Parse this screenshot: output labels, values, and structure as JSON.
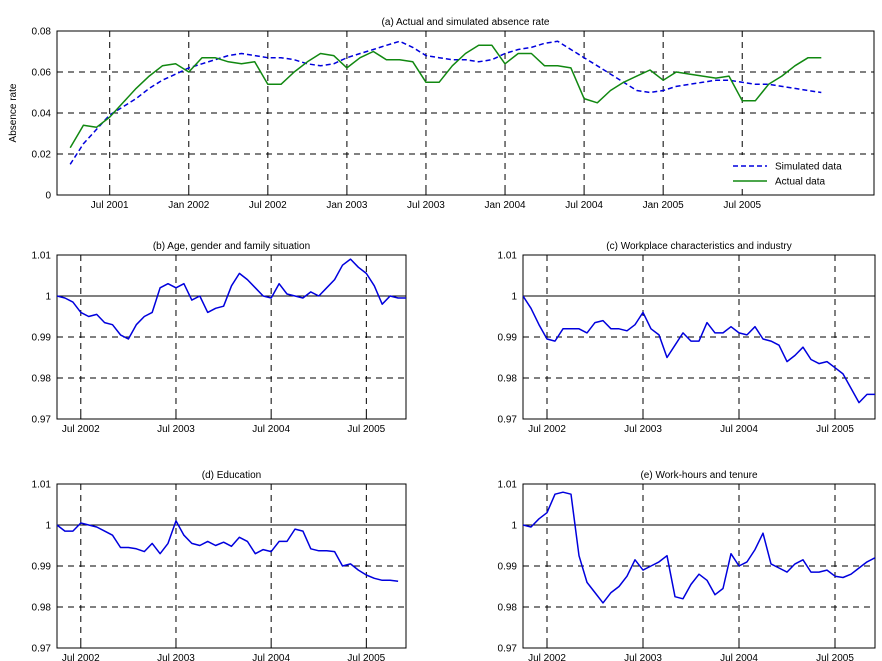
{
  "chart_data": [
    {
      "type": "line",
      "title": "(a) Actual and simulated absence rate",
      "xlabel": "",
      "ylabel": "Absence rate",
      "xlim": [
        "2001-03",
        "2006-05"
      ],
      "ylim": [
        0,
        0.08
      ],
      "yticks": [
        0,
        0.02,
        0.04,
        0.06,
        0.08
      ],
      "ytick_labels": [
        "0",
        "0.02",
        "0.04",
        "0.06",
        "0.08"
      ],
      "xticks": [
        "2001-07",
        "2002-01",
        "2002-07",
        "2003-01",
        "2003-07",
        "2004-01",
        "2004-07",
        "2005-01",
        "2005-07"
      ],
      "xtick_labels": [
        "Jul 2001",
        "Jan 2002",
        "Jul 2002",
        "Jan 2003",
        "Jul 2003",
        "Jan 2004",
        "Jul 2004",
        "Jan 2005",
        "Jul 2005"
      ],
      "grid": true,
      "legend": "bottom-right",
      "series": [
        {
          "name": "Simulated data",
          "color": "#0000dd",
          "style": "dashed",
          "x": [
            "2001-04",
            "2001-05",
            "2001-06",
            "2001-07",
            "2001-08",
            "2001-09",
            "2001-10",
            "2001-11",
            "2001-12",
            "2002-01",
            "2002-02",
            "2002-03",
            "2002-04",
            "2002-05",
            "2002-06",
            "2002-07",
            "2002-08",
            "2002-09",
            "2002-10",
            "2002-11",
            "2002-12",
            "2003-01",
            "2003-02",
            "2003-03",
            "2003-04",
            "2003-05",
            "2003-06",
            "2003-07",
            "2003-08",
            "2003-09",
            "2003-10",
            "2003-11",
            "2003-12",
            "2004-01",
            "2004-02",
            "2004-03",
            "2004-04",
            "2004-05",
            "2004-06",
            "2004-07",
            "2004-08",
            "2004-09",
            "2004-10",
            "2004-11",
            "2004-12",
            "2005-01",
            "2005-02",
            "2005-03",
            "2005-04",
            "2005-05",
            "2005-06",
            "2005-07",
            "2005-08",
            "2005-09",
            "2005-10",
            "2005-11",
            "2005-12",
            "2006-01"
          ],
          "values": [
            0.015,
            0.025,
            0.032,
            0.039,
            0.043,
            0.047,
            0.052,
            0.056,
            0.059,
            0.062,
            0.064,
            0.066,
            0.068,
            0.069,
            0.068,
            0.067,
            0.067,
            0.066,
            0.064,
            0.063,
            0.064,
            0.067,
            0.069,
            0.071,
            0.073,
            0.075,
            0.072,
            0.068,
            0.067,
            0.066,
            0.066,
            0.065,
            0.066,
            0.069,
            0.071,
            0.072,
            0.074,
            0.075,
            0.071,
            0.067,
            0.063,
            0.059,
            0.055,
            0.051,
            0.05,
            0.051,
            0.053,
            0.054,
            0.055,
            0.056,
            0.056,
            0.055,
            0.054,
            0.054,
            0.053,
            0.052,
            0.051,
            0.05
          ]
        },
        {
          "name": "Actual data",
          "color": "#118811",
          "style": "solid",
          "x": [
            "2001-04",
            "2001-05",
            "2001-06",
            "2001-07",
            "2001-08",
            "2001-09",
            "2001-10",
            "2001-11",
            "2001-12",
            "2002-01",
            "2002-02",
            "2002-03",
            "2002-04",
            "2002-05",
            "2002-06",
            "2002-07",
            "2002-08",
            "2002-09",
            "2002-10",
            "2002-11",
            "2002-12",
            "2003-01",
            "2003-02",
            "2003-03",
            "2003-04",
            "2003-05",
            "2003-06",
            "2003-07",
            "2003-08",
            "2003-09",
            "2003-10",
            "2003-11",
            "2003-12",
            "2004-01",
            "2004-02",
            "2004-03",
            "2004-04",
            "2004-05",
            "2004-06",
            "2004-07",
            "2004-08",
            "2004-09",
            "2004-10",
            "2004-11",
            "2004-12",
            "2005-01",
            "2005-02",
            "2005-03",
            "2005-04",
            "2005-05",
            "2005-06",
            "2005-07",
            "2005-08",
            "2005-09",
            "2005-10",
            "2005-11",
            "2005-12",
            "2006-01"
          ],
          "values": [
            0.023,
            0.034,
            0.033,
            0.038,
            0.045,
            0.052,
            0.058,
            0.063,
            0.064,
            0.06,
            0.067,
            0.067,
            0.065,
            0.064,
            0.065,
            0.054,
            0.054,
            0.06,
            0.065,
            0.069,
            0.068,
            0.062,
            0.067,
            0.07,
            0.066,
            0.066,
            0.065,
            0.055,
            0.055,
            0.063,
            0.069,
            0.073,
            0.073,
            0.064,
            0.069,
            0.069,
            0.063,
            0.063,
            0.062,
            0.047,
            0.045,
            0.051,
            0.055,
            0.058,
            0.061,
            0.056,
            0.06,
            0.059,
            0.058,
            0.057,
            0.058,
            0.046,
            0.046,
            0.054,
            0.058,
            0.063,
            0.067,
            0.067
          ]
        }
      ]
    },
    {
      "type": "line",
      "title": "(b) Age, gender and family situation",
      "xlabel": "",
      "ylabel": "",
      "xlim": [
        "2002-04",
        "2005-12"
      ],
      "ylim": [
        0.97,
        1.01
      ],
      "yticks": [
        0.97,
        0.98,
        0.99,
        1.0,
        1.01
      ],
      "ytick_labels": [
        "0.97",
        "0.98",
        "0.99",
        "1",
        "1.01"
      ],
      "xticks": [
        "2002-07",
        "2003-07",
        "2004-07",
        "2005-07"
      ],
      "xtick_labels": [
        "Jul 2002",
        "Jul 2003",
        "Jul 2004",
        "Jul 2005"
      ],
      "grid": true,
      "reference_line": 1.0,
      "series": [
        {
          "color": "#0000dd",
          "style": "solid",
          "x": [
            "2002-04",
            "2002-05",
            "2002-06",
            "2002-07",
            "2002-08",
            "2002-09",
            "2002-10",
            "2002-11",
            "2002-12",
            "2003-01",
            "2003-02",
            "2003-03",
            "2003-04",
            "2003-05",
            "2003-06",
            "2003-07",
            "2003-08",
            "2003-09",
            "2003-10",
            "2003-11",
            "2003-12",
            "2004-01",
            "2004-02",
            "2004-03",
            "2004-04",
            "2004-05",
            "2004-06",
            "2004-07",
            "2004-08",
            "2004-09",
            "2004-10",
            "2004-11",
            "2004-12",
            "2005-01",
            "2005-02",
            "2005-03",
            "2005-04",
            "2005-05",
            "2005-06",
            "2005-07",
            "2005-08",
            "2005-09",
            "2005-10",
            "2005-11",
            "2005-12"
          ],
          "values": [
            1.0,
            0.9995,
            0.9985,
            0.996,
            0.995,
            0.9955,
            0.9935,
            0.993,
            0.9905,
            0.9895,
            0.993,
            0.995,
            0.996,
            1.002,
            1.003,
            1.002,
            1.003,
            0.999,
            1.0,
            0.996,
            0.997,
            0.9975,
            1.0025,
            1.0055,
            1.004,
            1.002,
            1.0,
            0.9995,
            1.003,
            1.0005,
            1.0,
            0.9995,
            1.001,
            1.0,
            1.002,
            1.004,
            1.0075,
            1.009,
            1.007,
            1.0055,
            1.0025,
            0.998,
            1.0,
            0.9995,
            0.9995
          ]
        }
      ]
    },
    {
      "type": "line",
      "title": "(c) Workplace characteristics and industry",
      "xlabel": "",
      "ylabel": "",
      "xlim": [
        "2002-04",
        "2005-12"
      ],
      "ylim": [
        0.97,
        1.01
      ],
      "yticks": [
        0.97,
        0.98,
        0.99,
        1.0,
        1.01
      ],
      "ytick_labels": [
        "0.97",
        "0.98",
        "0.99",
        "1",
        "1.01"
      ],
      "xticks": [
        "2002-07",
        "2003-07",
        "2004-07",
        "2005-07"
      ],
      "xtick_labels": [
        "Jul 2002",
        "Jul 2003",
        "Jul 2004",
        "Jul 2005"
      ],
      "grid": true,
      "reference_line": 1.0,
      "series": [
        {
          "color": "#0000dd",
          "style": "solid",
          "x": [
            "2002-04",
            "2002-05",
            "2002-06",
            "2002-07",
            "2002-08",
            "2002-09",
            "2002-10",
            "2002-11",
            "2002-12",
            "2003-01",
            "2003-02",
            "2003-03",
            "2003-04",
            "2003-05",
            "2003-06",
            "2003-07",
            "2003-08",
            "2003-09",
            "2003-10",
            "2003-11",
            "2003-12",
            "2004-01",
            "2004-02",
            "2004-03",
            "2004-04",
            "2004-05",
            "2004-06",
            "2004-07",
            "2004-08",
            "2004-09",
            "2004-10",
            "2004-11",
            "2004-12",
            "2005-01",
            "2005-02",
            "2005-03",
            "2005-04",
            "2005-05",
            "2005-06",
            "2005-07",
            "2005-08",
            "2005-09",
            "2005-10",
            "2005-11",
            "2005-12"
          ],
          "values": [
            1.0,
            0.997,
            0.993,
            0.9895,
            0.989,
            0.992,
            0.992,
            0.992,
            0.991,
            0.9935,
            0.994,
            0.992,
            0.992,
            0.9915,
            0.993,
            0.996,
            0.992,
            0.9905,
            0.985,
            0.988,
            0.991,
            0.989,
            0.989,
            0.9935,
            0.991,
            0.991,
            0.9925,
            0.991,
            0.9905,
            0.9925,
            0.9895,
            0.989,
            0.988,
            0.984,
            0.9855,
            0.9875,
            0.9845,
            0.9835,
            0.984,
            0.9825,
            0.981,
            0.9775,
            0.974,
            0.976,
            0.976
          ]
        }
      ]
    },
    {
      "type": "line",
      "title": "(d) Education",
      "xlabel": "",
      "ylabel": "",
      "xlim": [
        "2002-04",
        "2005-12"
      ],
      "ylim": [
        0.97,
        1.01
      ],
      "yticks": [
        0.97,
        0.98,
        0.99,
        1.0,
        1.01
      ],
      "ytick_labels": [
        "0.97",
        "0.98",
        "0.99",
        "1",
        "1.01"
      ],
      "xticks": [
        "2002-07",
        "2003-07",
        "2004-07",
        "2005-07"
      ],
      "xtick_labels": [
        "Jul 2002",
        "Jul 2003",
        "Jul 2004",
        "Jul 2005"
      ],
      "grid": true,
      "reference_line": 1.0,
      "series": [
        {
          "color": "#0000dd",
          "style": "solid",
          "x": [
            "2002-04",
            "2002-05",
            "2002-06",
            "2002-07",
            "2002-08",
            "2002-09",
            "2002-10",
            "2002-11",
            "2002-12",
            "2003-01",
            "2003-02",
            "2003-03",
            "2003-04",
            "2003-05",
            "2003-06",
            "2003-07",
            "2003-08",
            "2003-09",
            "2003-10",
            "2003-11",
            "2003-12",
            "2004-01",
            "2004-02",
            "2004-03",
            "2004-04",
            "2004-05",
            "2004-06",
            "2004-07",
            "2004-08",
            "2004-09",
            "2004-10",
            "2004-11",
            "2004-12",
            "2005-01",
            "2005-02",
            "2005-03",
            "2005-04",
            "2005-05",
            "2005-06",
            "2005-07",
            "2005-08",
            "2005-09",
            "2005-10",
            "2005-11"
          ],
          "values": [
            1.0,
            0.9985,
            0.9985,
            1.0005,
            1.0,
            0.9995,
            0.9985,
            0.9975,
            0.9945,
            0.9945,
            0.9942,
            0.9935,
            0.9955,
            0.993,
            0.9955,
            1.001,
            0.9975,
            0.9955,
            0.995,
            0.996,
            0.995,
            0.9958,
            0.9948,
            0.997,
            0.996,
            0.993,
            0.994,
            0.9935,
            0.996,
            0.996,
            0.999,
            0.9985,
            0.9942,
            0.9937,
            0.9937,
            0.9935,
            0.99,
            0.9905,
            0.989,
            0.9878,
            0.987,
            0.9865,
            0.9865,
            0.9863
          ]
        }
      ]
    },
    {
      "type": "line",
      "title": "(e) Work-hours and tenure",
      "xlabel": "",
      "ylabel": "",
      "xlim": [
        "2002-04",
        "2005-12"
      ],
      "ylim": [
        0.97,
        1.01
      ],
      "yticks": [
        0.97,
        0.98,
        0.99,
        1.0,
        1.01
      ],
      "ytick_labels": [
        "0.97",
        "0.98",
        "0.99",
        "1",
        "1.01"
      ],
      "xticks": [
        "2002-07",
        "2003-07",
        "2004-07",
        "2005-07"
      ],
      "xtick_labels": [
        "Jul 2002",
        "Jul 2003",
        "Jul 2004",
        "Jul 2005"
      ],
      "grid": true,
      "reference_line": 1.0,
      "series": [
        {
          "color": "#0000dd",
          "style": "solid",
          "x": [
            "2002-04",
            "2002-05",
            "2002-06",
            "2002-07",
            "2002-08",
            "2002-09",
            "2002-10",
            "2002-11",
            "2002-12",
            "2003-01",
            "2003-02",
            "2003-03",
            "2003-04",
            "2003-05",
            "2003-06",
            "2003-07",
            "2003-08",
            "2003-09",
            "2003-10",
            "2003-11",
            "2003-12",
            "2004-01",
            "2004-02",
            "2004-03",
            "2004-04",
            "2004-05",
            "2004-06",
            "2004-07",
            "2004-08",
            "2004-09",
            "2004-10",
            "2004-11",
            "2004-12",
            "2005-01",
            "2005-02",
            "2005-03",
            "2005-04",
            "2005-05",
            "2005-06",
            "2005-07",
            "2005-08",
            "2005-09",
            "2005-10",
            "2005-11",
            "2005-12"
          ],
          "values": [
            1.0,
            0.9995,
            1.0015,
            1.003,
            1.0075,
            1.008,
            1.0075,
            0.9925,
            0.986,
            0.9835,
            0.981,
            0.9835,
            0.985,
            0.9875,
            0.9915,
            0.989,
            0.99,
            0.991,
            0.9925,
            0.9825,
            0.982,
            0.9855,
            0.988,
            0.9865,
            0.983,
            0.9845,
            0.993,
            0.99,
            0.991,
            0.994,
            0.998,
            0.9905,
            0.9895,
            0.9885,
            0.9905,
            0.9915,
            0.9885,
            0.9885,
            0.989,
            0.9875,
            0.9872,
            0.988,
            0.9895,
            0.991,
            0.992
          ]
        }
      ]
    }
  ]
}
